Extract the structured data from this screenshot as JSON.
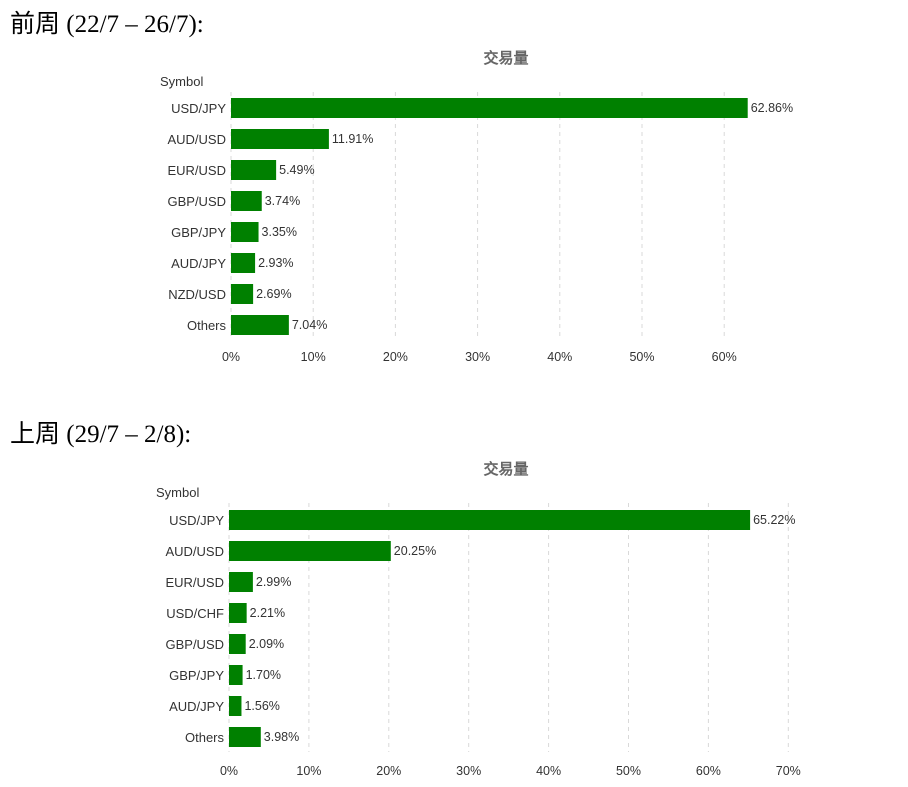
{
  "headings": [
    "前周 (22/7 – 26/7):",
    "上周 (29/7 – 2/8):"
  ],
  "chart_data": [
    {
      "type": "bar",
      "orientation": "horizontal",
      "title": "交易量",
      "ylabel": "Symbol",
      "categories": [
        "USD/JPY",
        "AUD/USD",
        "EUR/USD",
        "GBP/USD",
        "GBP/JPY",
        "AUD/JPY",
        "NZD/USD",
        "Others"
      ],
      "values": [
        62.86,
        11.91,
        5.49,
        3.74,
        3.35,
        2.93,
        2.69,
        7.04
      ],
      "value_labels": [
        "62.86%",
        "11.91%",
        "5.49%",
        "3.74%",
        "3.35%",
        "2.93%",
        "2.69%",
        "7.04%"
      ],
      "xlim": [
        0,
        60
      ],
      "xticks": [
        "0%",
        "10%",
        "20%",
        "30%",
        "40%",
        "50%",
        "60%"
      ],
      "grid": true,
      "color": "#008000"
    },
    {
      "type": "bar",
      "orientation": "horizontal",
      "title": "交易量",
      "ylabel": "Symbol",
      "categories": [
        "USD/JPY",
        "AUD/USD",
        "EUR/USD",
        "USD/CHF",
        "GBP/USD",
        "GBP/JPY",
        "AUD/JPY",
        "Others"
      ],
      "values": [
        65.22,
        20.25,
        2.99,
        2.21,
        2.09,
        1.7,
        1.56,
        3.98
      ],
      "value_labels": [
        "65.22%",
        "20.25%",
        "2.99%",
        "2.21%",
        "2.09%",
        "1.70%",
        "1.56%",
        "3.98%"
      ],
      "xlim": [
        0,
        70
      ],
      "xticks": [
        "0%",
        "10%",
        "20%",
        "30%",
        "40%",
        "50%",
        "60%",
        "70%"
      ],
      "grid": true,
      "color": "#008000"
    }
  ]
}
